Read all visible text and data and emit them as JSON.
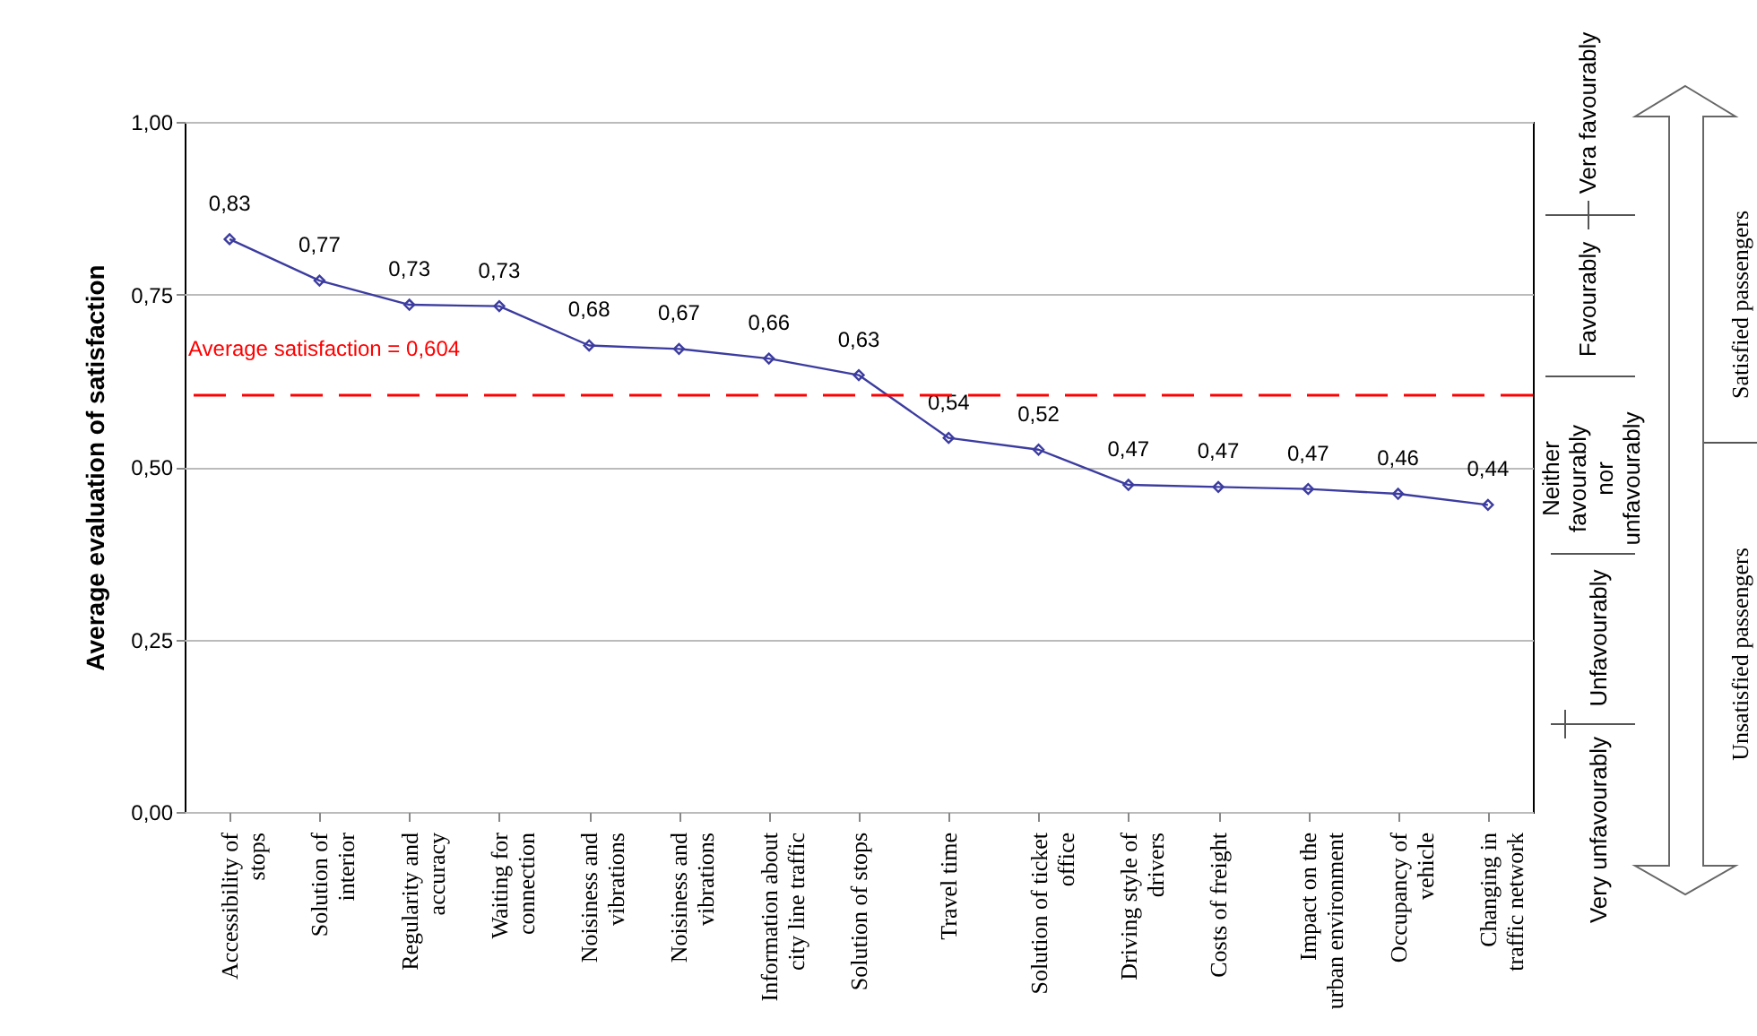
{
  "chart_data": {
    "type": "line",
    "ylabel": "Average evaluation of satisfaction",
    "categories": [
      "Accessibility of stops",
      "Solution of interior",
      "Regularity and accuracy",
      "Waiting for connection",
      "Noisiness and vibrations",
      "Noisiness and vibrations",
      "Information about city line traffic",
      "Solution of stops",
      "Travel time",
      "Solution of ticket office",
      "Driving style of drivers",
      "Costs of freight",
      "Impact on the urban environment",
      "Occupancy of vehicle",
      "Changing in traffic network"
    ],
    "series": [
      {
        "color": "#3c3ca0",
        "values": [
          0.83,
          0.77,
          0.735,
          0.733,
          0.676,
          0.671,
          0.657,
          0.633,
          0.542,
          0.525,
          0.474,
          0.471,
          0.468,
          0.461,
          0.445
        ],
        "value_labels": [
          "0,83",
          "0,77",
          "0,73",
          "0,73",
          "0,68",
          "0,67",
          "0,66",
          "0,63",
          "0,54",
          "0,52",
          "0,47",
          "0,47",
          "0,47",
          "0,46",
          "0,44"
        ]
      }
    ],
    "ylim": [
      0,
      1
    ],
    "yticks": [
      {
        "value": 0,
        "label": "0,00"
      },
      {
        "value": 0.25,
        "label": "0,25"
      },
      {
        "value": 0.5,
        "label": "0,50"
      },
      {
        "value": 0.75,
        "label": "0,75"
      },
      {
        "value": 1,
        "label": "1,00"
      }
    ],
    "grid": "y",
    "marker": "diamond",
    "line_style": "solid",
    "ref_lines": [
      {
        "axis": "y",
        "value": 0.604,
        "label": "Average satisfaction = 0,604",
        "color": "#ff0000",
        "line_style": "dashed"
      }
    ],
    "annotations": [
      "Vera favourably",
      "Favourably",
      "Neither favourably nor unfavourably",
      "Unfavourably",
      "Very unfavourably",
      "Satisfied passengers",
      "Unsatisfied passengers"
    ]
  }
}
